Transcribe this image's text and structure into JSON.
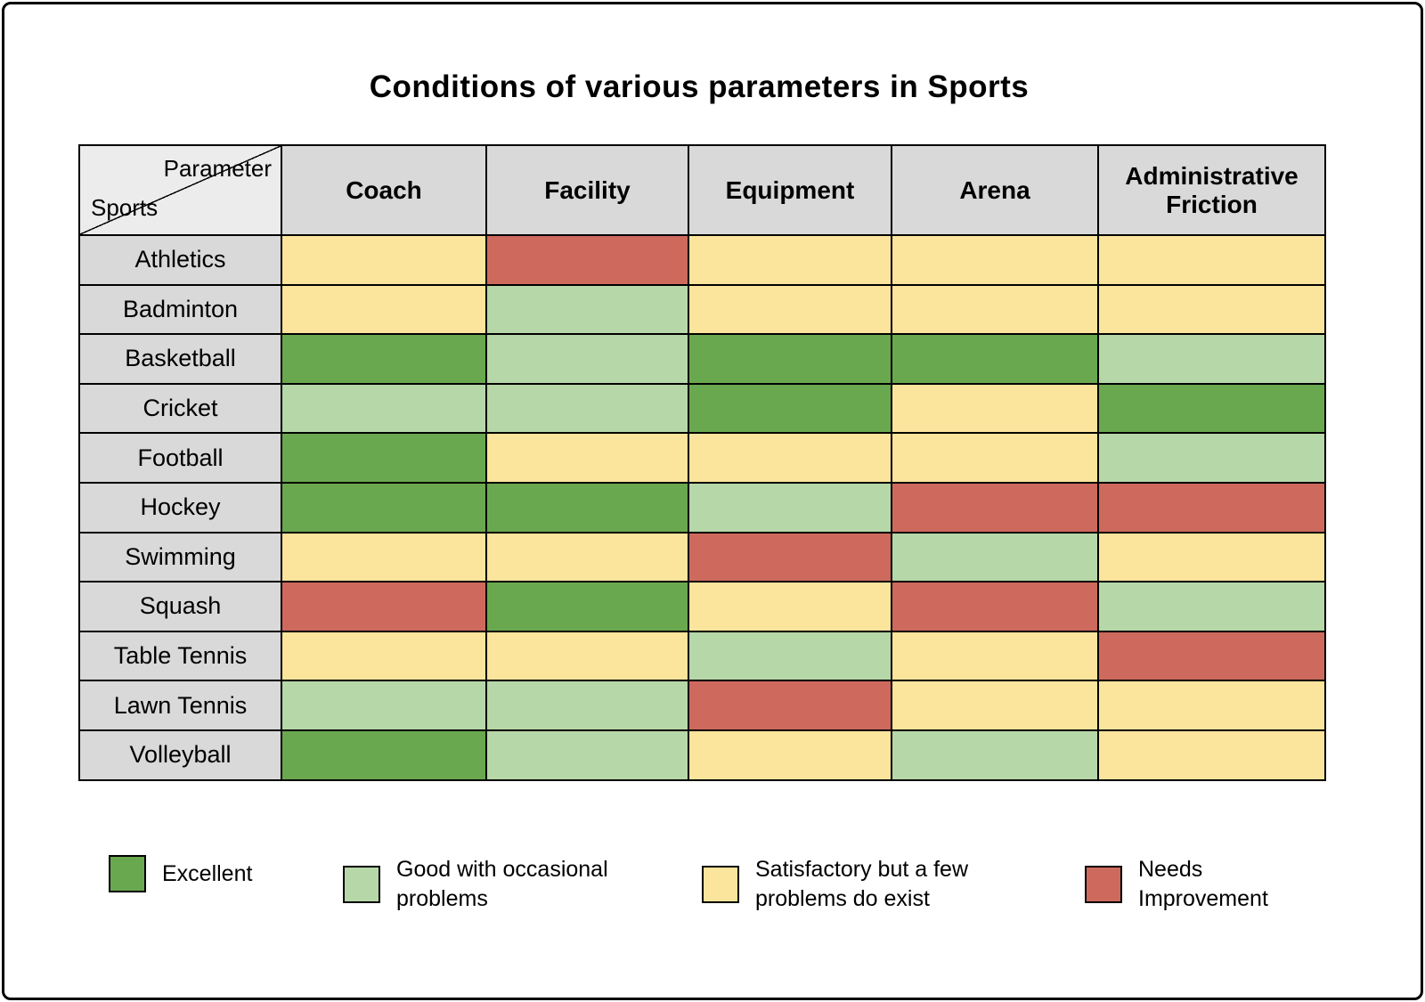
{
  "title": "Conditions of various parameters in Sports",
  "corner": {
    "top_label": "Parameter",
    "bottom_label": "Sports"
  },
  "chart_data": {
    "type": "heatmap",
    "title": "Conditions of various parameters in Sports",
    "columns": [
      "Coach",
      "Facility",
      "Equipment",
      "Arena",
      "Administrative Friction"
    ],
    "rows": [
      "Athletics",
      "Badminton",
      "Basketball",
      "Cricket",
      "Football",
      "Hockey",
      "Swimming",
      "Squash",
      "Table Tennis",
      "Lawn Tennis",
      "Volleyball"
    ],
    "cells": [
      [
        "satisfactory",
        "needs_improvement",
        "satisfactory",
        "satisfactory",
        "satisfactory"
      ],
      [
        "satisfactory",
        "good",
        "satisfactory",
        "satisfactory",
        "satisfactory"
      ],
      [
        "excellent",
        "good",
        "excellent",
        "excellent",
        "good"
      ],
      [
        "good",
        "good",
        "excellent",
        "satisfactory",
        "excellent"
      ],
      [
        "excellent",
        "satisfactory",
        "satisfactory",
        "satisfactory",
        "good"
      ],
      [
        "excellent",
        "excellent",
        "good",
        "needs_improvement",
        "needs_improvement"
      ],
      [
        "satisfactory",
        "satisfactory",
        "needs_improvement",
        "good",
        "satisfactory"
      ],
      [
        "needs_improvement",
        "excellent",
        "satisfactory",
        "needs_improvement",
        "good"
      ],
      [
        "satisfactory",
        "satisfactory",
        "good",
        "satisfactory",
        "needs_improvement"
      ],
      [
        "good",
        "good",
        "needs_improvement",
        "satisfactory",
        "satisfactory"
      ],
      [
        "excellent",
        "good",
        "satisfactory",
        "good",
        "satisfactory"
      ]
    ],
    "legend": [
      {
        "key": "excellent",
        "label": "Excellent",
        "color": "#6aa84f"
      },
      {
        "key": "good",
        "label": "Good with occasional problems",
        "color": "#b6d7a8"
      },
      {
        "key": "satisfactory",
        "label": "Satisfactory but a few problems do exist",
        "color": "#fbe49c"
      },
      {
        "key": "needs_improvement",
        "label": "Needs Improvement",
        "color": "#cd6a5d"
      }
    ],
    "header_background": "#d9d9d9",
    "legend_position": "bottom",
    "grid": true
  }
}
